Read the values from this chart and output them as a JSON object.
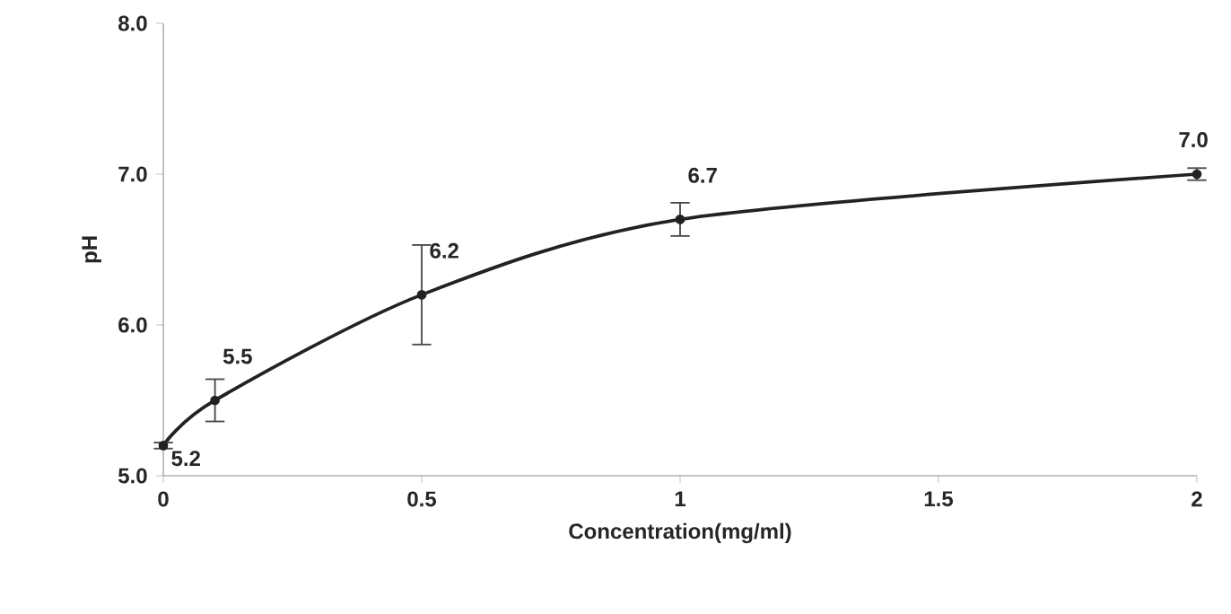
{
  "chart_data": {
    "type": "line",
    "xlabel": "Concentration(mg/ml)",
    "ylabel": "pH",
    "x": [
      0,
      0.1,
      0.5,
      1,
      2
    ],
    "values": [
      5.2,
      5.5,
      6.2,
      6.7,
      7.0
    ],
    "value_labels": [
      "5.2",
      "5.5",
      "6.2",
      "6.7",
      "7.0"
    ],
    "errors": [
      0.02,
      0.14,
      0.33,
      0.11,
      0.04
    ],
    "color": "#222222",
    "marker": "circle",
    "line_style": "solid",
    "xlim": [
      0,
      2
    ],
    "xticks": [
      0,
      0.5,
      1,
      1.5,
      2
    ],
    "ylim": [
      5,
      8
    ],
    "yticks": [
      {
        "value": 5,
        "label": "5.0"
      },
      {
        "value": 6,
        "label": "6.0"
      },
      {
        "value": 7,
        "label": "7.0"
      },
      {
        "value": 8,
        "label": "8.0"
      }
    ],
    "grid": false
  }
}
